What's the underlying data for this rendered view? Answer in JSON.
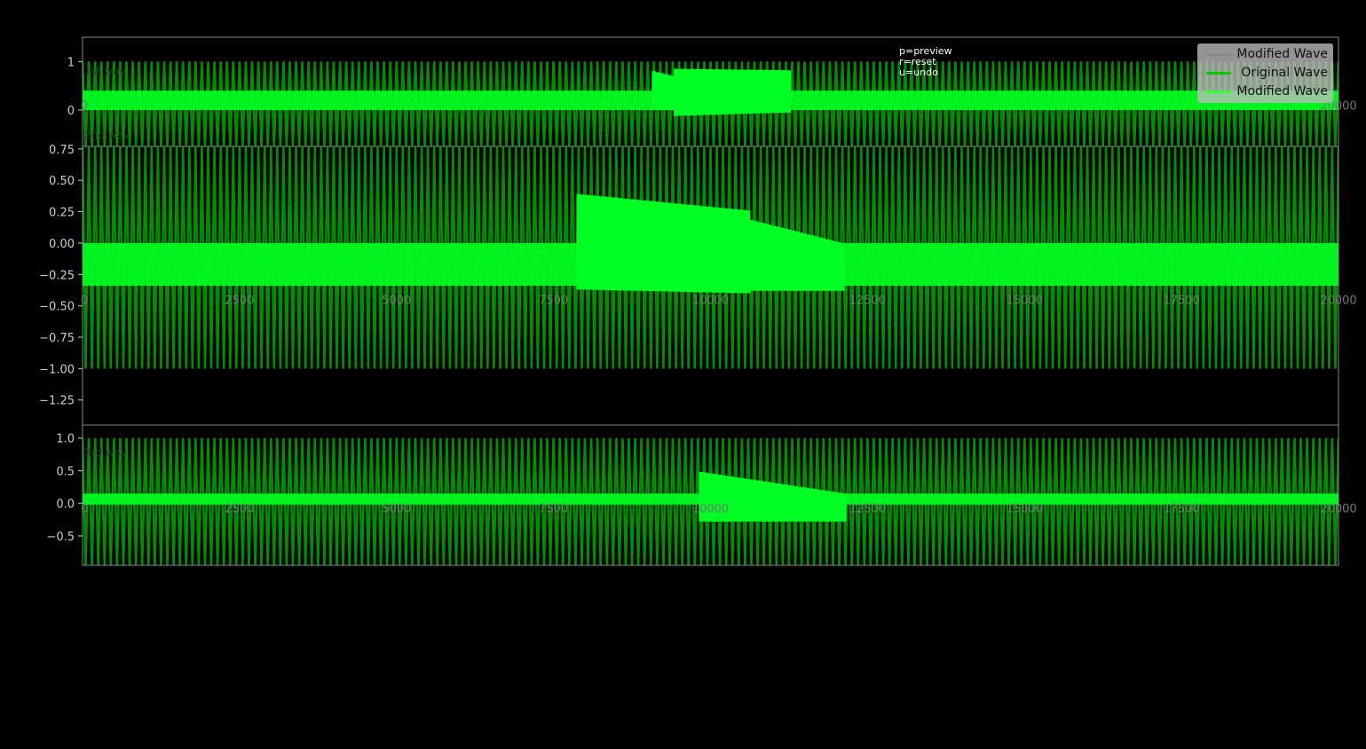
{
  "hints": [
    "p=preview",
    "r=reset",
    "u=undo"
  ],
  "legend": [
    {
      "label": "Modified Wave",
      "color": "#888888"
    },
    {
      "label": "Original Wave",
      "color": "#00cc00"
    },
    {
      "label": "Modified Wave",
      "color": "#33ff33"
    }
  ],
  "colors": {
    "background": "#000000",
    "wave": "#008f00",
    "modified": "#00ff22",
    "axis": "#888888"
  },
  "chart_data": [
    {
      "type": "line",
      "name": "1st.wav",
      "xlim": [
        0,
        20000
      ],
      "ylim": [
        -0.75,
        1.5
      ],
      "yticks": [
        {
          "v": 0,
          "t": "0"
        },
        {
          "v": 1,
          "t": "1"
        }
      ],
      "xticks": [
        {
          "v": 0,
          "t": "0"
        },
        {
          "v": 20000,
          "t": "20000"
        }
      ],
      "xtick_y": 0.1,
      "original": {
        "high": 1.0,
        "low": -0.75
      },
      "modified_band": [
        0.4,
        0.0
      ],
      "modified_regions": [
        {
          "from": 9100,
          "to": 9400,
          "top": [
            0.8,
            0.7
          ],
          "bottom": [
            0.0,
            0.0
          ]
        },
        {
          "from": 9450,
          "to": 11250,
          "top": [
            0.85,
            0.82
          ],
          "bottom": [
            -0.12,
            -0.05
          ]
        }
      ]
    },
    {
      "type": "line",
      "name": "2nd.wav",
      "xlim": [
        0,
        20000
      ],
      "ylim": [
        -1.45,
        0.77
      ],
      "yticks": [
        {
          "v": 0.75,
          "t": "0.75"
        },
        {
          "v": 0.5,
          "t": "0.50"
        },
        {
          "v": 0.25,
          "t": "0.25"
        },
        {
          "v": 0,
          "t": "0.00"
        },
        {
          "v": -0.25,
          "t": "−0.25"
        },
        {
          "v": -0.5,
          "t": "−0.50"
        },
        {
          "v": -0.75,
          "t": "−0.75"
        },
        {
          "v": -1.0,
          "t": "−1.00"
        },
        {
          "v": -1.25,
          "t": "−1.25"
        }
      ],
      "xticks": [
        {
          "v": 0,
          "t": "0"
        },
        {
          "v": 2500,
          "t": "2500"
        },
        {
          "v": 5000,
          "t": "5000"
        },
        {
          "v": 7500,
          "t": "7500"
        },
        {
          "v": 10000,
          "t": "10000"
        },
        {
          "v": 12500,
          "t": "12500"
        },
        {
          "v": 15000,
          "t": "15000"
        },
        {
          "v": 17500,
          "t": "17500"
        },
        {
          "v": 20000,
          "t": "20000"
        }
      ],
      "xtick_y": -0.45,
      "original": {
        "high": 0.77,
        "low": -1.0
      },
      "modified_band": [
        0.0,
        -0.34
      ],
      "modified_regions": [
        {
          "from": 7900,
          "to": 10600,
          "top": [
            0.39,
            0.26
          ],
          "bottom": [
            -0.37,
            -0.4
          ]
        },
        {
          "from": 10600,
          "to": 12100,
          "top": [
            0.19,
            0.0
          ],
          "bottom": [
            -0.38,
            -0.38
          ]
        }
      ]
    },
    {
      "type": "line",
      "name": "3rd.wav",
      "xlim": [
        0,
        20000
      ],
      "ylim": [
        -0.95,
        1.2
      ],
      "yticks": [
        {
          "v": 1.0,
          "t": "1.0"
        },
        {
          "v": 0.5,
          "t": "0.5"
        },
        {
          "v": 0,
          "t": "0.0"
        },
        {
          "v": -0.5,
          "t": "−0.5"
        }
      ],
      "xticks": [
        {
          "v": 0,
          "t": "0"
        },
        {
          "v": 2500,
          "t": "2500"
        },
        {
          "v": 5000,
          "t": "5000"
        },
        {
          "v": 7500,
          "t": "7500"
        },
        {
          "v": 10000,
          "t": "10000"
        },
        {
          "v": 12500,
          "t": "12500"
        },
        {
          "v": 15000,
          "t": "15000"
        },
        {
          "v": 17500,
          "t": "17500"
        },
        {
          "v": 20000,
          "t": "20000"
        }
      ],
      "xtick_y": -0.07,
      "original": {
        "high": 1.0,
        "low": -0.95
      },
      "modified_band": [
        0.15,
        -0.02
      ],
      "modified_regions": [
        {
          "from": 9850,
          "to": 12150,
          "top": [
            0.48,
            0.15
          ],
          "bottom": [
            -0.28,
            -0.28
          ]
        }
      ]
    }
  ]
}
